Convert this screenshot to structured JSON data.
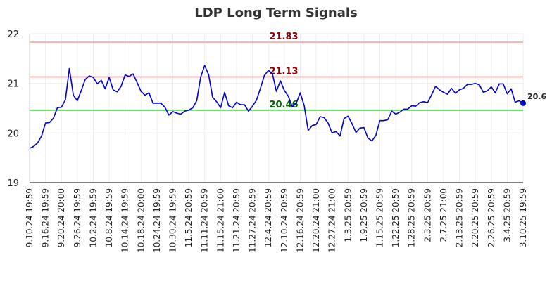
{
  "chart_data": {
    "type": "line",
    "title": "LDP Long Term Signals",
    "ylim": [
      19,
      22
    ],
    "yticks": [
      "19",
      "20",
      "21",
      "22"
    ],
    "grid": true,
    "x_labels": [
      "9.10.24 19:59",
      "9.16.24 19:59",
      "9.20.24 20:00",
      "9.26.24 19:59",
      "10.2.24 19:59",
      "10.8.24 19:59",
      "10.14.24 19:59",
      "10.18.24 20:00",
      "10.24.24 19:59",
      "10.30.24 19:59",
      "11.5.24 20:59",
      "11.11.24 20:59",
      "11.15.24 21:00",
      "11.21.24 20:59",
      "11.27.24 20:59",
      "12.4.24 20:59",
      "12.10.24 20:59",
      "12.16.24 20:59",
      "12.20.24 21:00",
      "12.27.24 21:00",
      "1.3.25 20:59",
      "1.9.25 20:59",
      "1.15.25 20:59",
      "1.22.25 20:59",
      "1.28.25 20:59",
      "2.3.25 20:59",
      "2.7.25 21:00",
      "2.13.25 20:59",
      "2.20.25 20:59",
      "2.26.25 20:59",
      "3.4.25 20:59",
      "3.10.25 19:59"
    ],
    "series": [
      {
        "color": "#0000cc",
        "values": [
          19.69,
          19.73,
          19.8,
          19.94,
          20.2,
          20.21,
          20.3,
          20.51,
          20.52,
          20.67,
          21.3,
          20.76,
          20.65,
          20.86,
          21.08,
          21.15,
          21.12,
          20.99,
          21.06,
          20.89,
          21.12,
          20.87,
          20.83,
          20.94,
          21.17,
          21.14,
          21.19,
          21.02,
          20.84,
          20.76,
          20.81,
          20.6,
          20.6,
          20.6,
          20.52,
          20.36,
          20.43,
          20.4,
          20.38,
          20.44,
          20.46,
          20.51,
          20.65,
          21.13,
          21.36,
          21.17,
          20.72,
          20.63,
          20.51,
          20.82,
          20.55,
          20.51,
          20.62,
          20.57,
          20.57,
          20.44,
          20.54,
          20.66,
          20.9,
          21.16,
          21.26,
          21.2,
          20.84,
          21.05,
          20.86,
          20.74,
          20.53,
          20.6,
          20.81,
          20.55,
          20.05,
          20.15,
          20.17,
          20.33,
          20.31,
          20.2,
          20.0,
          20.03,
          19.94,
          20.29,
          20.34,
          20.19,
          20.01,
          20.1,
          20.11,
          19.9,
          19.84,
          19.95,
          20.25,
          20.25,
          20.27,
          20.44,
          20.38,
          20.42,
          20.48,
          20.48,
          20.55,
          20.54,
          20.61,
          20.63,
          20.61,
          20.77,
          20.94,
          20.87,
          20.82,
          20.78,
          20.9,
          20.8,
          20.87,
          20.9,
          20.98,
          20.98,
          21.0,
          20.97,
          20.82,
          20.85,
          20.93,
          20.81,
          20.99,
          20.99,
          20.79,
          20.89,
          20.62,
          20.65,
          20.6
        ]
      }
    ],
    "levels": [
      {
        "value": 21.83,
        "label": "21.83",
        "line_color": "#ffb3b3",
        "text_color": "#8b0000"
      },
      {
        "value": 21.13,
        "label": "21.13",
        "line_color": "#ffb3b3",
        "text_color": "#8b0000"
      },
      {
        "value": 20.46,
        "label": "20.46",
        "line_color": "#66dd66",
        "text_color": "#006400"
      }
    ],
    "last_value_label": "20.6"
  }
}
